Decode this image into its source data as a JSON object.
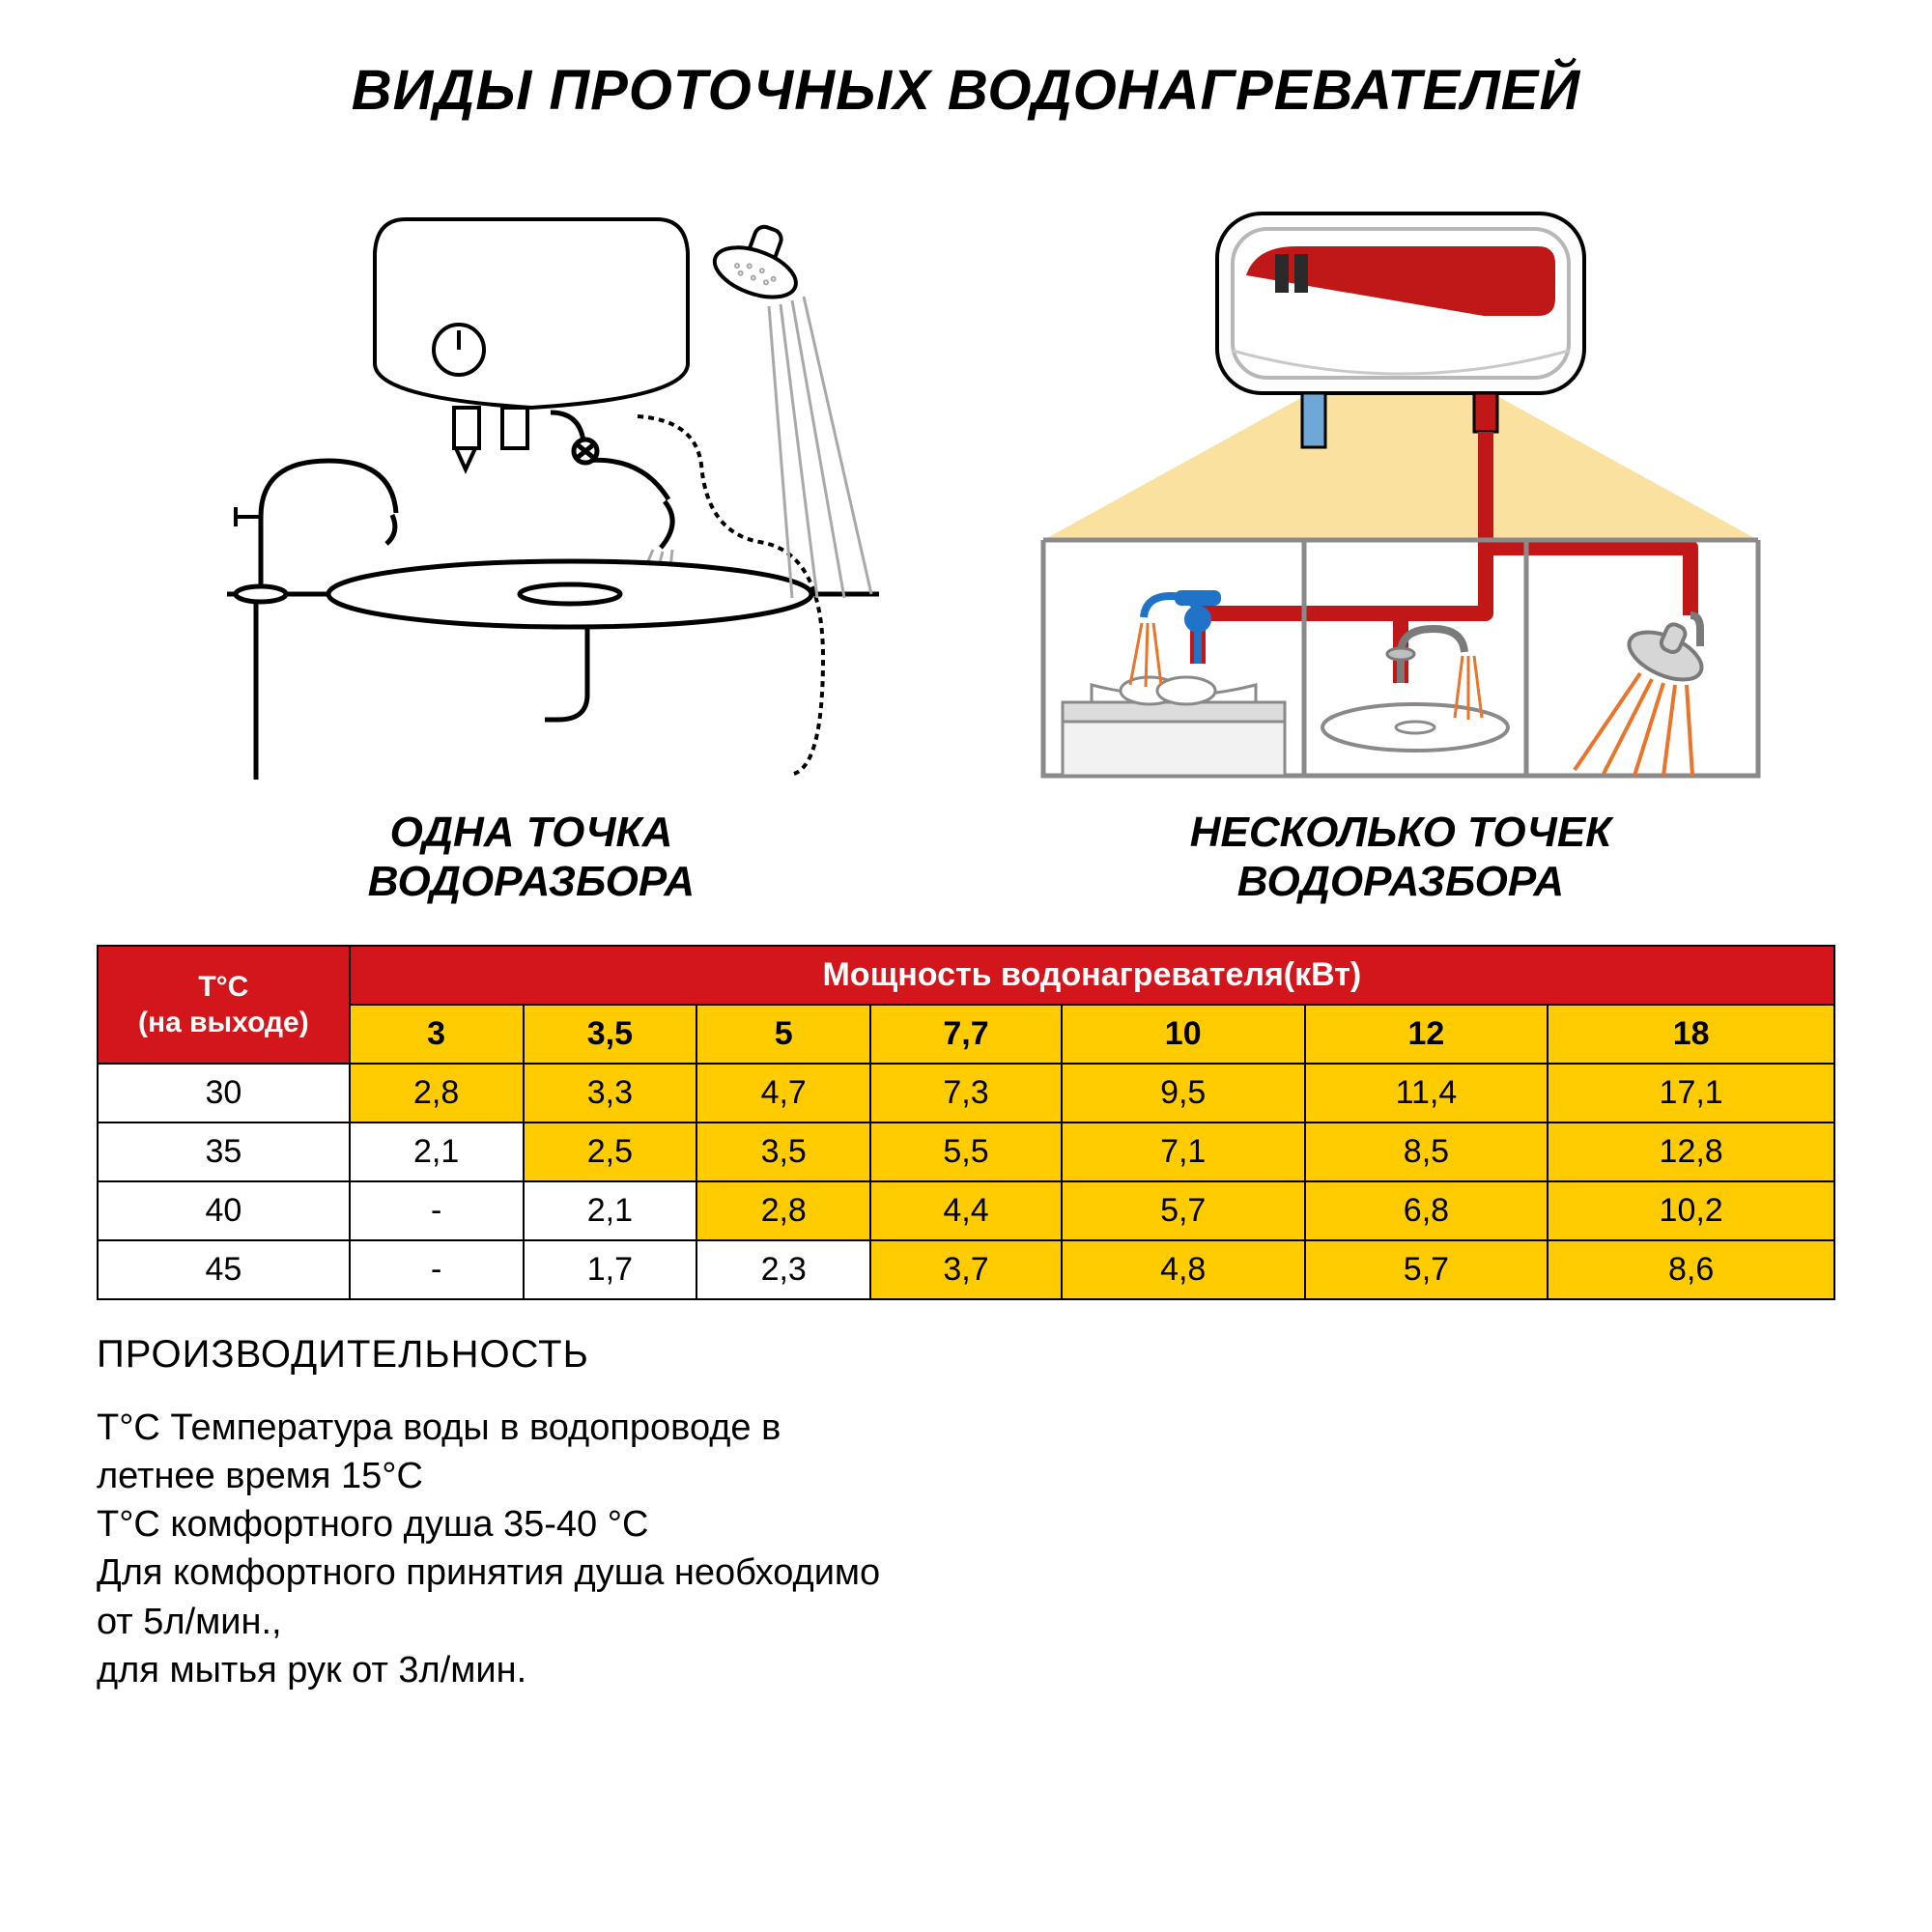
{
  "title": "ВИДЫ ПРОТОЧНЫХ ВОДОНАГРЕВАТЕЛЕЙ",
  "subtitles": {
    "left": "ОДНА ТОЧКА\nВОДОРАЗБОРА",
    "right": "НЕСКОЛЬКО ТОЧЕК\nВОДОРАЗБОРА"
  },
  "table": {
    "row_header_label": "T°C\n(на выходе)",
    "col_group_label": "Мощность водонагревателя(кВт)",
    "power_values": [
      "3",
      "3,5",
      "5",
      "7,7",
      "10",
      "12",
      "18"
    ],
    "rows": [
      {
        "t": "30",
        "cells": [
          "2,8",
          "3,3",
          "4,7",
          "7,3",
          "9,5",
          "11,4",
          "17,1"
        ],
        "hl": [
          true,
          true,
          true,
          true,
          true,
          true,
          true
        ]
      },
      {
        "t": "35",
        "cells": [
          "2,1",
          "2,5",
          "3,5",
          "5,5",
          "7,1",
          "8,5",
          "12,8"
        ],
        "hl": [
          false,
          true,
          true,
          true,
          true,
          true,
          true
        ]
      },
      {
        "t": "40",
        "cells": [
          "-",
          "2,1",
          "2,8",
          "4,4",
          "5,7",
          "6,8",
          "10,2"
        ],
        "hl": [
          false,
          false,
          true,
          true,
          true,
          true,
          true
        ]
      },
      {
        "t": "45",
        "cells": [
          "-",
          "1,7",
          "2,3",
          "3,7",
          "4,8",
          "5,7",
          "8,6"
        ],
        "hl": [
          false,
          false,
          false,
          true,
          true,
          true,
          true
        ]
      }
    ],
    "colors": {
      "header_bg": "#d3161b",
      "header_fg": "#ffffff",
      "highlight_bg": "#fecc00",
      "border": "#000000",
      "plain_bg": "#ffffff"
    },
    "column_widths_pct": [
      14.5,
      10,
      10,
      10,
      11,
      14,
      14,
      16.5
    ]
  },
  "footer": {
    "heading": "ПРОИЗВОДИТЕЛЬНОСТЬ",
    "lines": [
      "T°C Температура воды в водопроводе в",
      "летнее время 15°C",
      "T°C комфортного душа 35-40 °C",
      "Для комфортного принятия душа необходимо",
      "от 5л/мин.,",
      "для мытья рук от 3л/мин."
    ]
  },
  "diagrams": {
    "left": {
      "type": "line-illustration",
      "description": "single-point heater over sink with faucet and shower head",
      "stroke": "#000000",
      "fill": "#ffffff"
    },
    "right": {
      "type": "line-illustration",
      "description": "multi-point heater feeding house with three outlets",
      "stroke": "#000000",
      "heater_accent": "#c01818",
      "pipe_color": "#c01818",
      "roof_glow": "#f6c852",
      "water_color": "#1f74c7",
      "spray_color": "#e9742a",
      "wall_color": "#8a8a8a"
    }
  }
}
